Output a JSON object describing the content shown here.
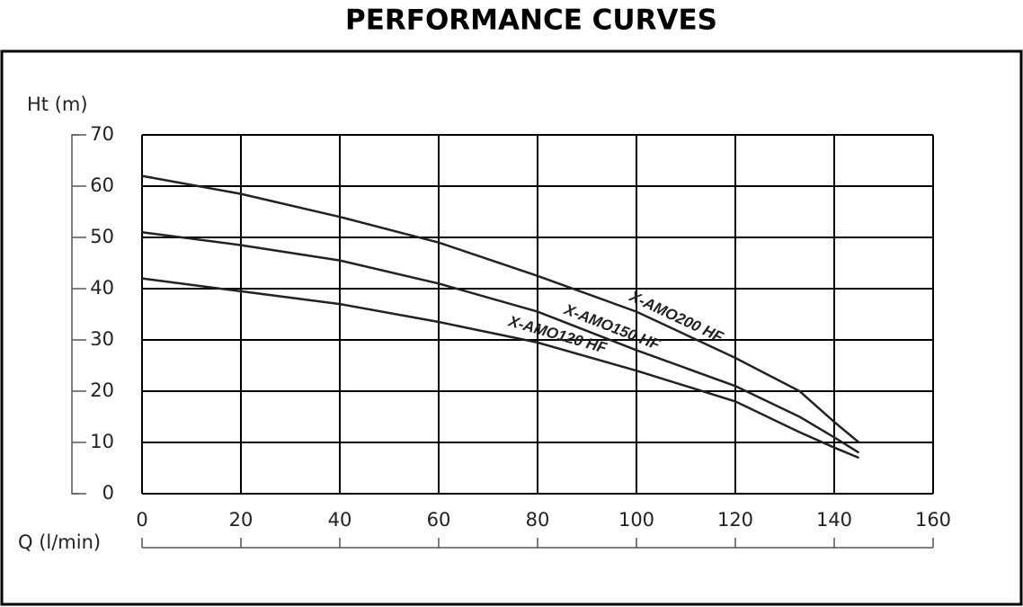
{
  "chart_data": {
    "type": "line",
    "title": "PERFORMANCE CURVES",
    "y_label": "Ht (m)",
    "x_label": "Q (l/min)",
    "xlim": [
      0,
      160
    ],
    "xticks": [
      0,
      20,
      40,
      60,
      80,
      100,
      120,
      140,
      160
    ],
    "ylim": [
      0,
      70
    ],
    "yticks": [
      0,
      10,
      20,
      30,
      40,
      50,
      60,
      70
    ],
    "grid": true,
    "x": [
      0,
      20,
      40,
      60,
      80,
      100,
      120,
      133,
      140,
      145
    ],
    "series": [
      {
        "name": "X-AMO200 HF",
        "color": "#222222",
        "values": [
          62,
          58.5,
          54,
          49,
          42.5,
          35.5,
          26.5,
          20,
          14,
          10
        ]
      },
      {
        "name": "X-AMO150 HF",
        "color": "#222222",
        "values": [
          51,
          48.5,
          45.5,
          41,
          35.5,
          28,
          21,
          15,
          11,
          8
        ]
      },
      {
        "name": "X-AMO120 HF",
        "color": "#222222",
        "values": [
          42,
          39.5,
          37,
          33.5,
          29.5,
          24,
          18,
          12,
          9,
          7
        ]
      }
    ]
  }
}
